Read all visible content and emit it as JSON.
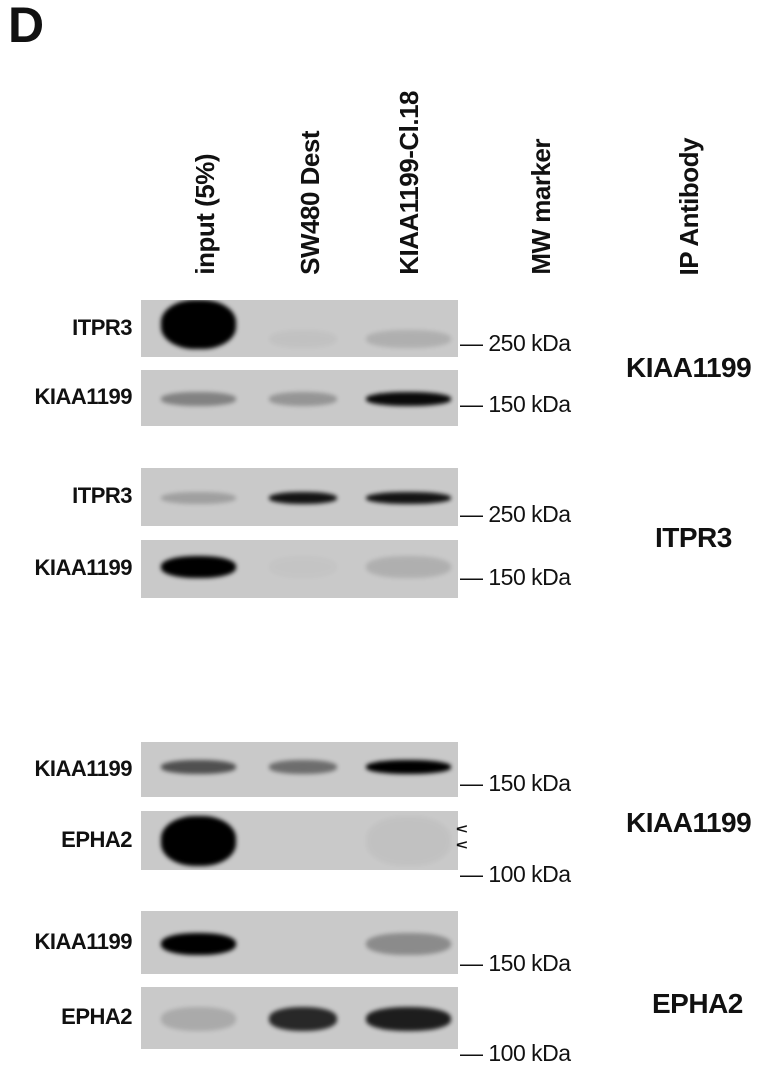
{
  "panel_letter": "D",
  "column_headers": [
    "input (5%)",
    "SW480 Dest",
    "KIAA1199-Cl.18",
    "MW marker",
    "IP Antibody"
  ],
  "blots": [
    {
      "label": "ITPR3",
      "marker": "— 250 kDa",
      "intensity": [
        1.0,
        0.03,
        0.12
      ]
    },
    {
      "label": "KIAA1199",
      "marker": "— 150 kDa",
      "intensity": [
        0.35,
        0.25,
        0.95
      ]
    },
    {
      "label": "ITPR3",
      "marker": "— 250 kDa",
      "intensity": [
        0.2,
        0.9,
        0.9
      ]
    },
    {
      "label": "KIAA1199",
      "marker": "— 150 kDa",
      "intensity": [
        1.0,
        0.02,
        0.12
      ]
    },
    {
      "label": "KIAA1199",
      "marker": "— 150 kDa",
      "intensity": [
        0.6,
        0.45,
        1.0
      ]
    },
    {
      "label": "EPHA2",
      "marker": "— 100 kDa",
      "intensity": [
        1.0,
        0.0,
        0.03
      ]
    },
    {
      "label": "KIAA1199",
      "marker": "— 150 kDa",
      "intensity": [
        1.0,
        0.0,
        0.3
      ]
    },
    {
      "label": "EPHA2",
      "marker": "— 100 kDa",
      "intensity": [
        0.15,
        0.8,
        0.85
      ]
    }
  ],
  "ip_antibodies": [
    "KIAA1199",
    "ITPR3",
    "KIAA1199",
    "EPHA2"
  ],
  "arrowheads": [
    "<",
    "<"
  ]
}
